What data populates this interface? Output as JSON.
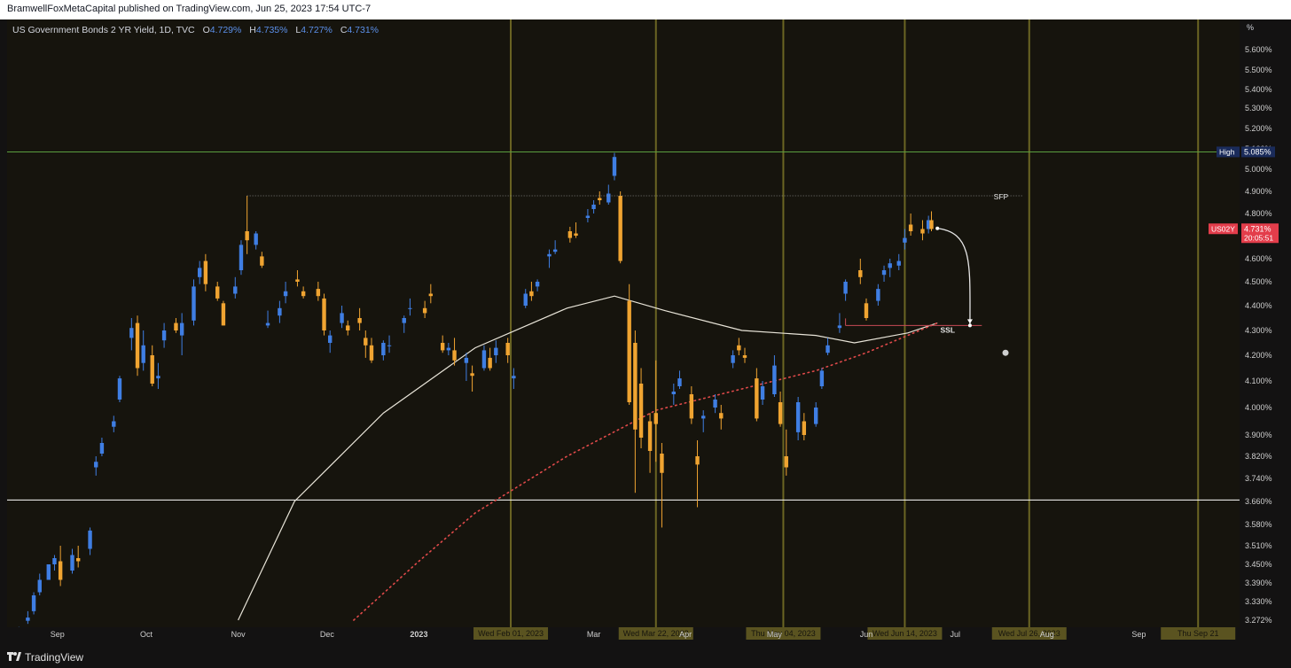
{
  "header": {
    "published_text": "BramwellFoxMetaCapital published on TradingView.com, Jun 25, 2023 17:54 UTC-7"
  },
  "legend": {
    "symbol": "US Government Bonds 2 YR Yield, 1D, TVC",
    "open_label": "O",
    "open": "4.729%",
    "high_label": "H",
    "high": "4.735%",
    "low_label": "L",
    "low": "4.727%",
    "close_label": "C",
    "close": "4.731%"
  },
  "footer": {
    "brand": "TradingView",
    "logo_icon": "tradingview-logo-icon"
  },
  "chart_data": {
    "type": "candlestick",
    "unit_label": "%",
    "y_ticks": [
      "5.600%",
      "5.500%",
      "5.400%",
      "5.300%",
      "5.200%",
      "5.100%",
      "5.000%",
      "4.900%",
      "4.800%",
      "4.700%",
      "4.600%",
      "4.500%",
      "4.400%",
      "4.300%",
      "4.200%",
      "4.100%",
      "4.000%",
      "3.900%",
      "3.820%",
      "3.740%",
      "3.660%",
      "3.580%",
      "3.510%",
      "3.450%",
      "3.390%",
      "3.330%",
      "3.272%"
    ],
    "x_ticks": [
      {
        "label": "Sep",
        "date": "2022-09-01",
        "bold": false
      },
      {
        "label": "Oct",
        "date": "2022-10-01",
        "bold": false
      },
      {
        "label": "Nov",
        "date": "2022-11-01",
        "bold": false
      },
      {
        "label": "Dec",
        "date": "2022-12-01",
        "bold": false
      },
      {
        "label": "2023",
        "date": "2023-01-01",
        "bold": true
      },
      {
        "label": "Mar",
        "date": "2023-03-01",
        "bold": false
      },
      {
        "label": "Apr",
        "date": "2023-04-01",
        "bold": false
      },
      {
        "label": "May",
        "date": "2023-05-01",
        "bold": false
      },
      {
        "label": "Jun",
        "date": "2023-06-01",
        "bold": false
      },
      {
        "label": "Jul",
        "date": "2023-07-01",
        "bold": false
      },
      {
        "label": "Aug",
        "date": "2023-08-01",
        "bold": false
      },
      {
        "label": "Sep",
        "date": "2023-09-01",
        "bold": false
      }
    ],
    "vertical_date_lines": [
      {
        "date": "2023-02-01",
        "label": "Wed Feb 01, 2023"
      },
      {
        "date": "2023-03-22",
        "label": "Wed Mar 22, 2023"
      },
      {
        "date": "2023-05-04",
        "label": "Thu May 04, 2023"
      },
      {
        "date": "2023-06-14",
        "label": "Wed Jun 14, 2023"
      },
      {
        "date": "2023-07-26",
        "label": "Wed Jul 26, 2023"
      },
      {
        "date": "2023-09-21",
        "label": "Thu Sep 21"
      }
    ],
    "horizontal_levels": [
      {
        "value": 5.085,
        "color": "#5a9e3f"
      },
      {
        "value": 3.665,
        "color": "#ffffff"
      }
    ],
    "high_marker": {
      "label": "High",
      "value_text": "5.085%"
    },
    "last_price": {
      "symbol": "US02Y",
      "value_text": "4.731%",
      "countdown": "20:05:51"
    },
    "annotations": [
      {
        "text": "SFP",
        "level": 4.88,
        "date": "2023-07-14"
      },
      {
        "text": "SSL",
        "level": 4.305,
        "date": "2023-06-26"
      }
    ],
    "sfp_line": {
      "from": "2022-11-04",
      "to": "2023-07-24",
      "value": 4.88
    },
    "ssl_line": {
      "from": "2023-05-25",
      "to": "2023-07-10",
      "value": 4.32
    },
    "projection": {
      "from_date": "2023-06-25",
      "from_value": 4.733,
      "to_date": "2023-07-06",
      "to_value": 4.32
    },
    "ma_sma": [
      [
        "2022-11-01",
        3.272
      ],
      [
        "2022-11-20",
        3.66
      ],
      [
        "2022-12-20",
        3.98
      ],
      [
        "2023-01-20",
        4.23
      ],
      [
        "2023-02-20",
        4.39
      ],
      [
        "2023-03-08",
        4.44
      ],
      [
        "2023-03-25",
        4.38
      ],
      [
        "2023-04-20",
        4.3
      ],
      [
        "2023-05-15",
        4.28
      ],
      [
        "2023-05-28",
        4.25
      ],
      [
        "2023-06-15",
        4.29
      ],
      [
        "2023-06-25",
        4.33
      ]
    ],
    "ma_dotted": [
      [
        "2022-12-10",
        3.272
      ],
      [
        "2023-01-01",
        3.46
      ],
      [
        "2023-01-20",
        3.62
      ],
      [
        "2023-02-20",
        3.82
      ],
      [
        "2023-03-22",
        3.99
      ],
      [
        "2023-04-20",
        4.07
      ],
      [
        "2023-05-15",
        4.14
      ],
      [
        "2023-06-01",
        4.21
      ],
      [
        "2023-06-25",
        4.33
      ]
    ],
    "candles": [
      [
        "2022-08-19",
        3.24,
        3.25,
        3.22,
        3.24
      ],
      [
        "2022-08-22",
        3.27,
        3.3,
        3.26,
        3.28
      ],
      [
        "2022-08-24",
        3.3,
        3.36,
        3.29,
        3.35
      ],
      [
        "2022-08-26",
        3.36,
        3.42,
        3.35,
        3.4
      ],
      [
        "2022-08-29",
        3.4,
        3.45,
        3.4,
        3.45
      ],
      [
        "2022-08-31",
        3.45,
        3.48,
        3.43,
        3.47
      ],
      [
        "2022-09-02",
        3.46,
        3.51,
        3.38,
        3.4
      ],
      [
        "2022-09-06",
        3.43,
        3.5,
        3.42,
        3.48
      ],
      [
        "2022-09-08",
        3.47,
        3.51,
        3.44,
        3.46
      ],
      [
        "2022-09-12",
        3.5,
        3.57,
        3.48,
        3.56
      ],
      [
        "2022-09-14",
        3.78,
        3.82,
        3.75,
        3.8
      ],
      [
        "2022-09-16",
        3.83,
        3.89,
        3.82,
        3.87
      ],
      [
        "2022-09-20",
        3.93,
        3.97,
        3.91,
        3.95
      ],
      [
        "2022-09-22",
        4.03,
        4.12,
        4.02,
        4.11
      ],
      [
        "2022-09-26",
        4.27,
        4.35,
        4.22,
        4.31
      ],
      [
        "2022-09-28",
        4.33,
        4.36,
        4.12,
        4.15
      ],
      [
        "2022-09-30",
        4.17,
        4.3,
        4.14,
        4.24
      ],
      [
        "2022-10-03",
        4.2,
        4.24,
        4.08,
        4.09
      ],
      [
        "2022-10-05",
        4.11,
        4.17,
        4.07,
        4.12
      ],
      [
        "2022-10-07",
        4.26,
        4.33,
        4.23,
        4.3
      ],
      [
        "2022-10-11",
        4.33,
        4.35,
        4.29,
        4.3
      ],
      [
        "2022-10-13",
        4.28,
        4.37,
        4.2,
        4.33
      ],
      [
        "2022-10-17",
        4.34,
        4.51,
        4.32,
        4.48
      ],
      [
        "2022-10-19",
        4.52,
        4.59,
        4.49,
        4.56
      ],
      [
        "2022-10-21",
        4.59,
        4.62,
        4.46,
        4.49
      ],
      [
        "2022-10-25",
        4.48,
        4.5,
        4.42,
        4.43
      ],
      [
        "2022-10-27",
        4.41,
        4.42,
        4.32,
        4.32
      ],
      [
        "2022-10-31",
        4.45,
        4.52,
        4.43,
        4.48
      ],
      [
        "2022-11-02",
        4.55,
        4.68,
        4.53,
        4.66
      ],
      [
        "2022-11-04",
        4.72,
        4.88,
        4.62,
        4.68
      ],
      [
        "2022-11-07",
        4.66,
        4.72,
        4.64,
        4.71
      ],
      [
        "2022-11-09",
        4.61,
        4.63,
        4.56,
        4.57
      ],
      [
        "2022-11-11",
        4.32,
        4.38,
        4.31,
        4.33
      ],
      [
        "2022-11-15",
        4.36,
        4.42,
        4.33,
        4.39
      ],
      [
        "2022-11-17",
        4.44,
        4.5,
        4.41,
        4.46
      ],
      [
        "2022-11-21",
        4.51,
        4.55,
        4.48,
        4.5
      ],
      [
        "2022-11-23",
        4.46,
        4.48,
        4.43,
        4.44
      ],
      [
        "2022-11-28",
        4.47,
        4.5,
        4.42,
        4.44
      ],
      [
        "2022-11-30",
        4.43,
        4.45,
        4.28,
        4.3
      ],
      [
        "2022-12-02",
        4.25,
        4.3,
        4.21,
        4.28
      ],
      [
        "2022-12-06",
        4.33,
        4.4,
        4.31,
        4.37
      ],
      [
        "2022-12-08",
        4.32,
        4.34,
        4.28,
        4.3
      ],
      [
        "2022-12-12",
        4.35,
        4.39,
        4.3,
        4.33
      ],
      [
        "2022-12-14",
        4.27,
        4.3,
        4.19,
        4.24
      ],
      [
        "2022-12-16",
        4.24,
        4.27,
        4.17,
        4.18
      ],
      [
        "2022-12-20",
        4.2,
        4.26,
        4.18,
        4.25
      ],
      [
        "2022-12-22",
        4.24,
        4.28,
        4.21,
        4.24
      ],
      [
        "2022-12-27",
        4.33,
        4.36,
        4.29,
        4.35
      ],
      [
        "2022-12-29",
        4.39,
        4.43,
        4.36,
        4.39
      ],
      [
        "2023-01-03",
        4.39,
        4.42,
        4.35,
        4.37
      ],
      [
        "2023-01-05",
        4.45,
        4.49,
        4.41,
        4.44
      ],
      [
        "2023-01-09",
        4.25,
        4.28,
        4.21,
        4.22
      ],
      [
        "2023-01-11",
        4.22,
        4.25,
        4.2,
        4.23
      ],
      [
        "2023-01-13",
        4.22,
        4.27,
        4.16,
        4.18
      ],
      [
        "2023-01-17",
        4.17,
        4.21,
        4.1,
        4.19
      ],
      [
        "2023-01-19",
        4.13,
        4.16,
        4.06,
        4.12
      ],
      [
        "2023-01-23",
        4.15,
        4.24,
        4.14,
        4.22
      ],
      [
        "2023-01-25",
        4.19,
        4.23,
        4.14,
        4.15
      ],
      [
        "2023-01-27",
        4.2,
        4.26,
        4.17,
        4.23
      ],
      [
        "2023-01-31",
        4.25,
        4.27,
        4.17,
        4.2
      ],
      [
        "2023-02-02",
        4.11,
        4.15,
        4.07,
        4.12
      ],
      [
        "2023-02-06",
        4.4,
        4.47,
        4.39,
        4.45
      ],
      [
        "2023-02-08",
        4.46,
        4.5,
        4.42,
        4.44
      ],
      [
        "2023-02-10",
        4.48,
        4.51,
        4.46,
        4.5
      ],
      [
        "2023-02-14",
        4.61,
        4.64,
        4.56,
        4.62
      ],
      [
        "2023-02-16",
        4.63,
        4.68,
        4.62,
        4.64
      ],
      [
        "2023-02-21",
        4.72,
        4.74,
        4.67,
        4.69
      ],
      [
        "2023-02-23",
        4.71,
        4.76,
        4.69,
        4.7
      ],
      [
        "2023-02-27",
        4.78,
        4.82,
        4.76,
        4.79
      ],
      [
        "2023-03-01",
        4.82,
        4.86,
        4.8,
        4.84
      ],
      [
        "2023-03-03",
        4.87,
        4.9,
        4.84,
        4.86
      ],
      [
        "2023-03-06",
        4.85,
        4.93,
        4.84,
        4.89
      ],
      [
        "2023-03-08",
        4.97,
        5.08,
        4.95,
        5.06
      ],
      [
        "2023-03-10",
        4.88,
        4.9,
        4.58,
        4.59
      ],
      [
        "2023-03-13",
        4.42,
        4.49,
        4.01,
        4.02
      ],
      [
        "2023-03-15",
        4.25,
        4.3,
        3.69,
        3.92
      ],
      [
        "2023-03-17",
        4.09,
        4.15,
        3.85,
        3.89
      ],
      [
        "2023-03-20",
        3.95,
        3.98,
        3.76,
        3.84
      ],
      [
        "2023-03-22",
        3.98,
        4.18,
        3.8,
        3.94
      ],
      [
        "2023-03-24",
        3.83,
        3.87,
        3.57,
        3.76
      ],
      [
        "2023-03-28",
        4.05,
        4.09,
        4.01,
        4.06
      ],
      [
        "2023-03-30",
        4.08,
        4.14,
        4.07,
        4.11
      ],
      [
        "2023-04-03",
        4.05,
        4.08,
        3.94,
        3.96
      ],
      [
        "2023-04-05",
        3.82,
        3.88,
        3.64,
        3.79
      ],
      [
        "2023-04-07",
        3.96,
        3.99,
        3.91,
        3.97
      ],
      [
        "2023-04-11",
        4.0,
        4.05,
        3.98,
        4.03
      ],
      [
        "2023-04-13",
        3.98,
        4.01,
        3.92,
        3.96
      ],
      [
        "2023-04-17",
        4.17,
        4.22,
        4.15,
        4.2
      ],
      [
        "2023-04-19",
        4.24,
        4.27,
        4.2,
        4.22
      ],
      [
        "2023-04-21",
        4.2,
        4.23,
        4.17,
        4.19
      ],
      [
        "2023-04-25",
        4.11,
        4.15,
        3.95,
        3.96
      ],
      [
        "2023-04-27",
        4.03,
        4.1,
        4.01,
        4.08
      ],
      [
        "2023-05-01",
        4.05,
        4.2,
        4.04,
        4.16
      ],
      [
        "2023-05-03",
        4.02,
        4.06,
        3.93,
        3.94
      ],
      [
        "2023-05-05",
        3.82,
        3.92,
        3.75,
        3.78
      ],
      [
        "2023-05-09",
        3.91,
        4.04,
        3.88,
        4.02
      ],
      [
        "2023-05-11",
        3.95,
        3.98,
        3.88,
        3.9
      ],
      [
        "2023-05-15",
        3.94,
        4.02,
        3.93,
        4.0
      ],
      [
        "2023-05-17",
        4.08,
        4.15,
        4.07,
        4.14
      ],
      [
        "2023-05-19",
        4.21,
        4.27,
        4.2,
        4.24
      ],
      [
        "2023-05-23",
        4.31,
        4.37,
        4.29,
        4.32
      ],
      [
        "2023-05-25",
        4.45,
        4.51,
        4.42,
        4.5
      ],
      [
        "2023-05-30",
        4.55,
        4.6,
        4.49,
        4.52
      ],
      [
        "2023-06-01",
        4.41,
        4.43,
        4.34,
        4.35
      ],
      [
        "2023-06-05",
        4.42,
        4.49,
        4.4,
        4.47
      ],
      [
        "2023-06-07",
        4.53,
        4.57,
        4.5,
        4.55
      ],
      [
        "2023-06-09",
        4.56,
        4.6,
        4.52,
        4.58
      ],
      [
        "2023-06-12",
        4.57,
        4.62,
        4.55,
        4.59
      ],
      [
        "2023-06-14",
        4.67,
        4.73,
        4.64,
        4.69
      ],
      [
        "2023-06-16",
        4.75,
        4.8,
        4.7,
        4.72
      ],
      [
        "2023-06-20",
        4.73,
        4.77,
        4.68,
        4.71
      ],
      [
        "2023-06-22",
        4.73,
        4.79,
        4.71,
        4.77
      ],
      [
        "2023-06-23",
        4.77,
        4.81,
        4.72,
        4.73
      ]
    ]
  }
}
